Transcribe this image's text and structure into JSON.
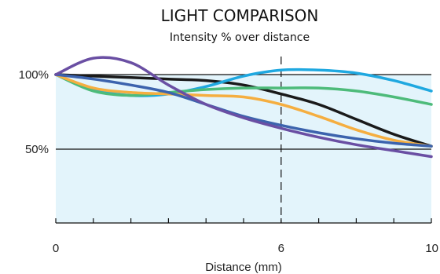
{
  "chart_data": {
    "type": "line",
    "title": "LIGHT COMPARISON",
    "subtitle": "Intensity % over distance",
    "xlabel": "Distance (mm)",
    "ylabel": "",
    "xlim": [
      0,
      10
    ],
    "ylim": [
      0,
      110
    ],
    "x_ticks": [
      0,
      6,
      10
    ],
    "x_tick_labels": [
      "0",
      "6",
      "10"
    ],
    "y_ticks": [
      50,
      100
    ],
    "y_tick_labels": [
      "50%",
      "100%"
    ],
    "grid": true,
    "reference_line_x": 6,
    "area_fill_color": "#e3f4fb",
    "series": [
      {
        "color": "#1a1a1a",
        "x": [
          0,
          1,
          2,
          3,
          4,
          5,
          6,
          7,
          8,
          9,
          10
        ],
        "y": [
          100,
          99,
          98,
          97,
          96,
          93,
          87,
          80,
          70,
          60,
          52
        ]
      },
      {
        "color": "#1fa8e0",
        "x": [
          0,
          1,
          2,
          3,
          4,
          5,
          6,
          7,
          8,
          9,
          10
        ],
        "y": [
          100,
          90,
          86,
          87,
          92,
          99,
          103,
          103,
          101,
          96,
          89
        ]
      },
      {
        "color": "#4dbb7a",
        "x": [
          0,
          1,
          2,
          3,
          4,
          5,
          6,
          7,
          8,
          9,
          10
        ],
        "y": [
          100,
          89,
          86,
          88,
          90,
          91,
          91,
          91,
          89,
          85,
          80
        ]
      },
      {
        "color": "#f5ae40",
        "x": [
          0,
          1,
          2,
          3,
          4,
          5,
          6,
          7,
          8,
          9,
          10
        ],
        "y": [
          100,
          91,
          88,
          87,
          86,
          85,
          80,
          72,
          63,
          56,
          52
        ]
      },
      {
        "color": "#3c63ad",
        "x": [
          0,
          1,
          2,
          3,
          4,
          5,
          6,
          7,
          8,
          9,
          10
        ],
        "y": [
          100,
          97,
          93,
          88,
          80,
          72,
          66,
          61,
          57,
          54,
          52
        ]
      },
      {
        "color": "#6a4fa3",
        "x": [
          0,
          1,
          2,
          3,
          4,
          5,
          6,
          7,
          8,
          9,
          10
        ],
        "y": [
          100,
          111,
          108,
          93,
          80,
          71,
          64,
          58,
          53,
          49,
          45
        ]
      }
    ]
  }
}
